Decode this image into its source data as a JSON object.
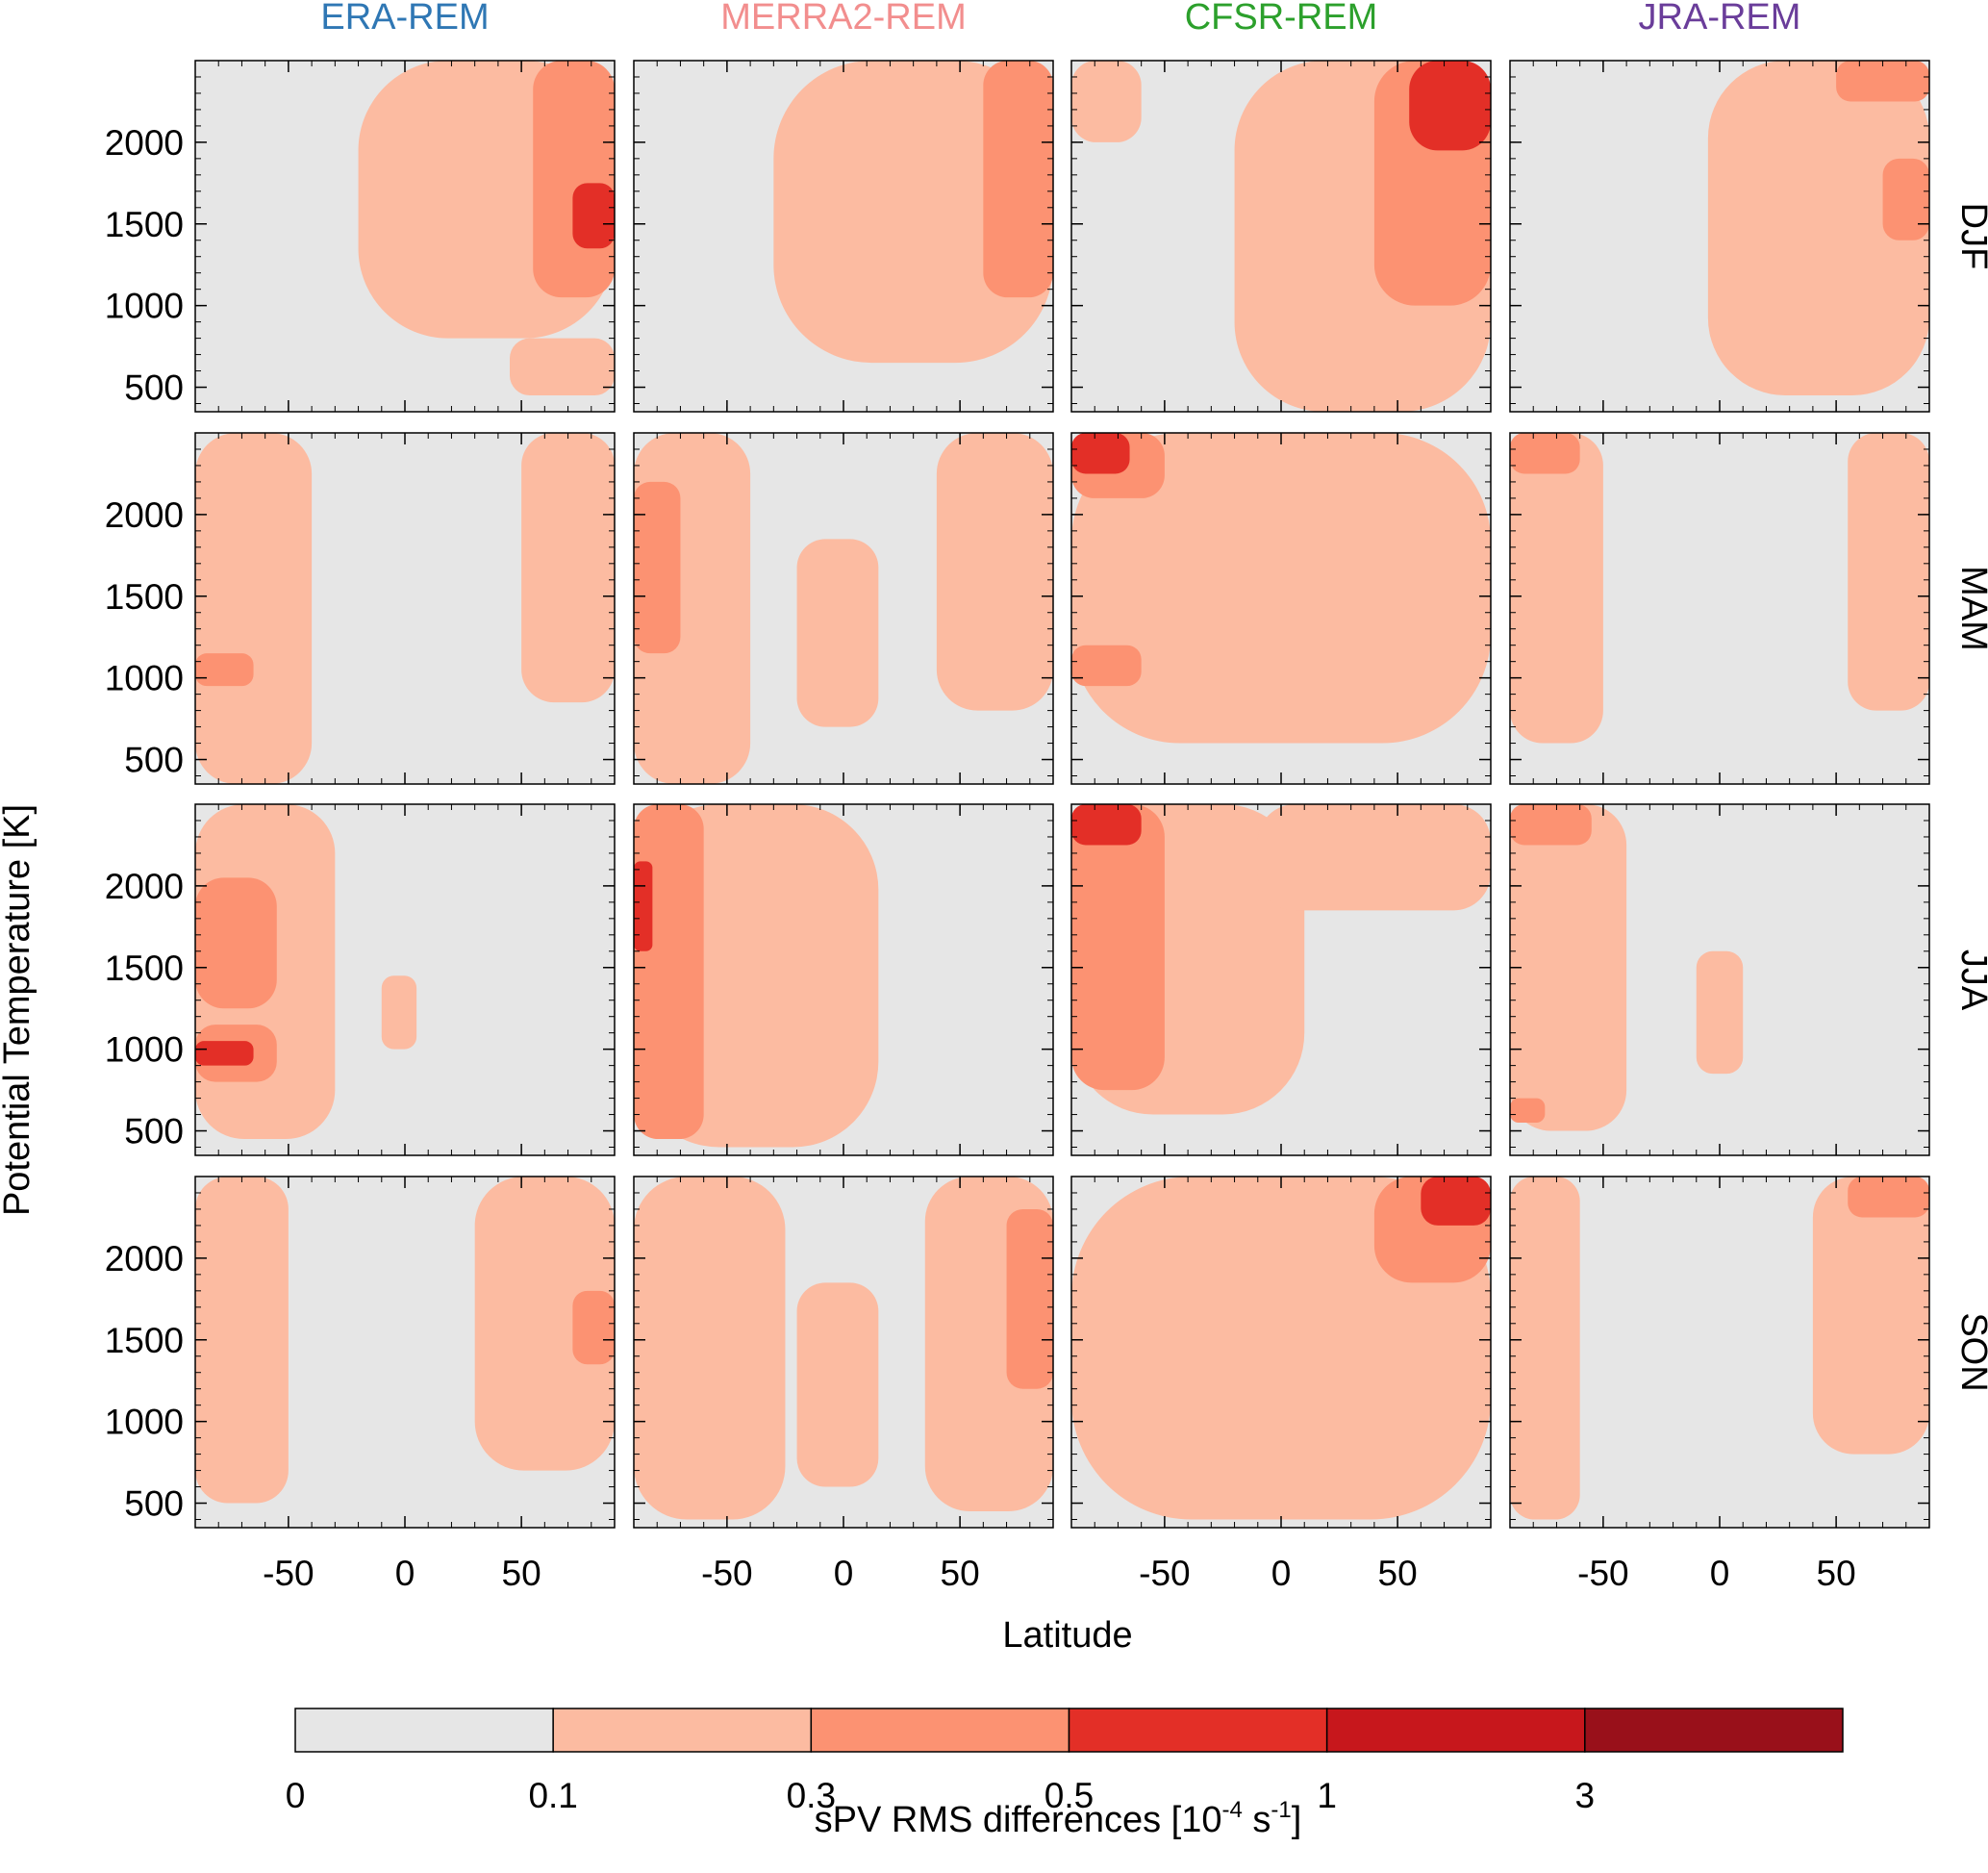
{
  "chart_data": {
    "type": "heatmap",
    "title": "",
    "xlabel": "Latitude",
    "ylabel": "Potential Temperature [K]",
    "xlim": [
      -90,
      90
    ],
    "ylim": [
      350,
      2500
    ],
    "grid": false,
    "x_ticks": [
      "-50",
      "0",
      "50"
    ],
    "y_ticks": [
      "500",
      "1000",
      "1500",
      "2000"
    ],
    "columns": [
      {
        "label": "ERA-REM",
        "color": "#2f77b4"
      },
      {
        "label": "MERRA2-REM",
        "color": "#f28e8e"
      },
      {
        "label": "CFSR-REM",
        "color": "#2ca02c"
      },
      {
        "label": "JRA-REM",
        "color": "#6a3d9a"
      }
    ],
    "rows": [
      "DJF",
      "MAM",
      "JJA",
      "SON"
    ],
    "colorbar": {
      "label_pre": "sPV RMS differences [10",
      "label_exp1": "-4",
      "label_mid": " s",
      "label_exp2": "-1",
      "label_post": "]",
      "tick_labels": [
        "0",
        "0.1",
        "0.3",
        "0.5",
        "1",
        "3"
      ],
      "bins": [
        {
          "from": 0,
          "to": 0.1,
          "color": "#e6e6e6"
        },
        {
          "from": 0.1,
          "to": 0.3,
          "color": "#fcbba1"
        },
        {
          "from": 0.3,
          "to": 0.5,
          "color": "#fc9272"
        },
        {
          "from": 0.5,
          "to": 1,
          "color": "#e32f27"
        },
        {
          "from": 1,
          "to": 3,
          "color": "#c7171c"
        },
        {
          "from": 3,
          "to": null,
          "color": "#99101a"
        }
      ]
    },
    "panels": [
      {
        "column": "ERA-REM",
        "row": "DJF",
        "regions": [
          {
            "level": 1,
            "lat": [
              -20,
              90
            ],
            "theta": [
              800,
              2500
            ]
          },
          {
            "level": 1,
            "lat": [
              45,
              90
            ],
            "theta": [
              450,
              800
            ]
          },
          {
            "level": 2,
            "lat": [
              55,
              90
            ],
            "theta": [
              1050,
              2500
            ]
          },
          {
            "level": 3,
            "lat": [
              72,
              90
            ],
            "theta": [
              1350,
              1750
            ]
          }
        ]
      },
      {
        "column": "MERRA2-REM",
        "row": "DJF",
        "regions": [
          {
            "level": 1,
            "lat": [
              -30,
              90
            ],
            "theta": [
              650,
              2500
            ]
          },
          {
            "level": 2,
            "lat": [
              60,
              90
            ],
            "theta": [
              1050,
              2500
            ]
          }
        ]
      },
      {
        "column": "CFSR-REM",
        "row": "DJF",
        "regions": [
          {
            "level": 1,
            "lat": [
              -20,
              90
            ],
            "theta": [
              350,
              2500
            ]
          },
          {
            "level": 1,
            "lat": [
              -90,
              -60
            ],
            "theta": [
              2000,
              2500
            ]
          },
          {
            "level": 2,
            "lat": [
              40,
              90
            ],
            "theta": [
              1000,
              2500
            ]
          },
          {
            "level": 3,
            "lat": [
              55,
              90
            ],
            "theta": [
              1950,
              2500
            ]
          }
        ]
      },
      {
        "column": "JRA-REM",
        "row": "DJF",
        "regions": [
          {
            "level": 1,
            "lat": [
              -5,
              90
            ],
            "theta": [
              450,
              2500
            ]
          },
          {
            "level": 2,
            "lat": [
              70,
              90
            ],
            "theta": [
              1400,
              1900
            ]
          },
          {
            "level": 2,
            "lat": [
              50,
              90
            ],
            "theta": [
              2250,
              2500
            ]
          }
        ]
      },
      {
        "column": "ERA-REM",
        "row": "MAM",
        "regions": [
          {
            "level": 1,
            "lat": [
              -90,
              -40
            ],
            "theta": [
              350,
              2500
            ]
          },
          {
            "level": 1,
            "lat": [
              50,
              90
            ],
            "theta": [
              850,
              2500
            ]
          },
          {
            "level": 2,
            "lat": [
              -90,
              -65
            ],
            "theta": [
              950,
              1150
            ]
          }
        ]
      },
      {
        "column": "MERRA2-REM",
        "row": "MAM",
        "regions": [
          {
            "level": 1,
            "lat": [
              -90,
              -40
            ],
            "theta": [
              350,
              2500
            ]
          },
          {
            "level": 1,
            "lat": [
              -20,
              15
            ],
            "theta": [
              700,
              1850
            ]
          },
          {
            "level": 1,
            "lat": [
              40,
              90
            ],
            "theta": [
              800,
              2500
            ]
          },
          {
            "level": 2,
            "lat": [
              -90,
              -70
            ],
            "theta": [
              1150,
              2200
            ]
          }
        ]
      },
      {
        "column": "CFSR-REM",
        "row": "MAM",
        "regions": [
          {
            "level": 1,
            "lat": [
              -90,
              90
            ],
            "theta": [
              600,
              2500
            ]
          },
          {
            "level": 2,
            "lat": [
              -90,
              -50
            ],
            "theta": [
              2100,
              2500
            ]
          },
          {
            "level": 2,
            "lat": [
              -90,
              -60
            ],
            "theta": [
              950,
              1200
            ]
          },
          {
            "level": 3,
            "lat": [
              -90,
              -65
            ],
            "theta": [
              2250,
              2500
            ]
          }
        ]
      },
      {
        "column": "JRA-REM",
        "row": "MAM",
        "regions": [
          {
            "level": 1,
            "lat": [
              -90,
              -50
            ],
            "theta": [
              600,
              2500
            ]
          },
          {
            "level": 1,
            "lat": [
              55,
              90
            ],
            "theta": [
              800,
              2500
            ]
          },
          {
            "level": 2,
            "lat": [
              -90,
              -60
            ],
            "theta": [
              2250,
              2500
            ]
          }
        ]
      },
      {
        "column": "ERA-REM",
        "row": "JJA",
        "regions": [
          {
            "level": 1,
            "lat": [
              -90,
              -30
            ],
            "theta": [
              450,
              2500
            ]
          },
          {
            "level": 1,
            "lat": [
              -10,
              5
            ],
            "theta": [
              1000,
              1450
            ]
          },
          {
            "level": 2,
            "lat": [
              -90,
              -55
            ],
            "theta": [
              1250,
              2050
            ]
          },
          {
            "level": 2,
            "lat": [
              -90,
              -55
            ],
            "theta": [
              800,
              1150
            ]
          },
          {
            "level": 3,
            "lat": [
              -90,
              -65
            ],
            "theta": [
              900,
              1050
            ]
          }
        ]
      },
      {
        "column": "MERRA2-REM",
        "row": "JJA",
        "regions": [
          {
            "level": 1,
            "lat": [
              -90,
              15
            ],
            "theta": [
              400,
              2500
            ]
          },
          {
            "level": 2,
            "lat": [
              -90,
              -60
            ],
            "theta": [
              450,
              2500
            ]
          },
          {
            "level": 3,
            "lat": [
              -90,
              -82
            ],
            "theta": [
              1600,
              2150
            ]
          }
        ]
      },
      {
        "column": "CFSR-REM",
        "row": "JJA",
        "regions": [
          {
            "level": 1,
            "lat": [
              -90,
              10
            ],
            "theta": [
              600,
              2500
            ]
          },
          {
            "level": 1,
            "lat": [
              -10,
              90
            ],
            "theta": [
              1850,
              2500
            ]
          },
          {
            "level": 2,
            "lat": [
              -90,
              -50
            ],
            "theta": [
              750,
              2500
            ]
          },
          {
            "level": 3,
            "lat": [
              -90,
              -60
            ],
            "theta": [
              2250,
              2500
            ]
          }
        ]
      },
      {
        "column": "JRA-REM",
        "row": "JJA",
        "regions": [
          {
            "level": 1,
            "lat": [
              -90,
              -40
            ],
            "theta": [
              500,
              2500
            ]
          },
          {
            "level": 1,
            "lat": [
              -10,
              10
            ],
            "theta": [
              850,
              1600
            ]
          },
          {
            "level": 2,
            "lat": [
              -90,
              -55
            ],
            "theta": [
              2250,
              2500
            ]
          },
          {
            "level": 2,
            "lat": [
              -90,
              -75
            ],
            "theta": [
              550,
              700
            ]
          }
        ]
      },
      {
        "column": "ERA-REM",
        "row": "SON",
        "regions": [
          {
            "level": 1,
            "lat": [
              -90,
              -50
            ],
            "theta": [
              500,
              2500
            ]
          },
          {
            "level": 1,
            "lat": [
              30,
              90
            ],
            "theta": [
              700,
              2500
            ]
          },
          {
            "level": 2,
            "lat": [
              72,
              90
            ],
            "theta": [
              1350,
              1800
            ]
          }
        ]
      },
      {
        "column": "MERRA2-REM",
        "row": "SON",
        "regions": [
          {
            "level": 1,
            "lat": [
              -90,
              -25
            ],
            "theta": [
              400,
              2500
            ]
          },
          {
            "level": 1,
            "lat": [
              -20,
              15
            ],
            "theta": [
              600,
              1850
            ]
          },
          {
            "level": 1,
            "lat": [
              35,
              90
            ],
            "theta": [
              450,
              2500
            ]
          },
          {
            "level": 2,
            "lat": [
              70,
              90
            ],
            "theta": [
              1200,
              2300
            ]
          }
        ]
      },
      {
        "column": "CFSR-REM",
        "row": "SON",
        "regions": [
          {
            "level": 1,
            "lat": [
              -90,
              90
            ],
            "theta": [
              400,
              2500
            ]
          },
          {
            "level": 2,
            "lat": [
              40,
              90
            ],
            "theta": [
              1850,
              2500
            ]
          },
          {
            "level": 3,
            "lat": [
              60,
              90
            ],
            "theta": [
              2200,
              2500
            ]
          }
        ]
      },
      {
        "column": "JRA-REM",
        "row": "SON",
        "regions": [
          {
            "level": 1,
            "lat": [
              -90,
              -60
            ],
            "theta": [
              400,
              2500
            ]
          },
          {
            "level": 1,
            "lat": [
              40,
              90
            ],
            "theta": [
              800,
              2500
            ]
          },
          {
            "level": 2,
            "lat": [
              55,
              90
            ],
            "theta": [
              2250,
              2500
            ]
          }
        ]
      }
    ]
  }
}
